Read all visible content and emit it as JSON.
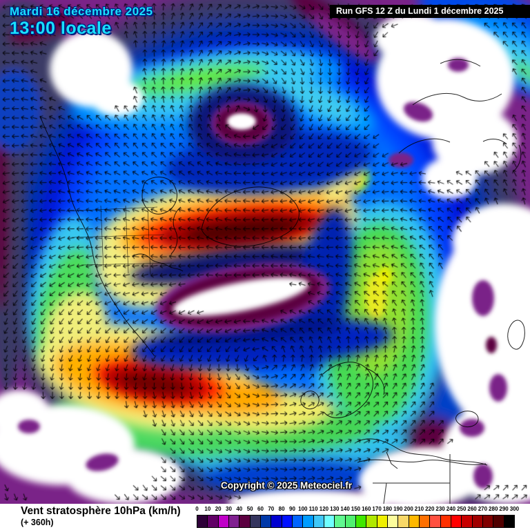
{
  "header": {
    "date_line": "Mardi 16 décembre 2025",
    "time_line": "13:00 locale",
    "run_info": "Run GFS 12 Z du Lundi 1 décembre 2025"
  },
  "map": {
    "copyright": "Copyright © 2025 Meteociel.fr",
    "kind": "polar stereographic stratospheric wind map with wind arrows"
  },
  "legend": {
    "title": "Vent stratosphère 10hPa (km/h)",
    "subtitle": "(+ 360h)",
    "ticks": [
      "0",
      "10",
      "20",
      "30",
      "40",
      "50",
      "60",
      "70",
      "80",
      "90",
      "100",
      "110",
      "120",
      "130",
      "140",
      "150",
      "160",
      "170",
      "180",
      "190",
      "200",
      "210",
      "220",
      "230",
      "240",
      "250",
      "260",
      "270",
      "280",
      "290",
      "300"
    ],
    "colors": [
      "#2e0038",
      "#610066",
      "#c000c8",
      "#802090",
      "#5c0040",
      "#35355e",
      "#0038a8",
      "#0000d0",
      "#0010ff",
      "#0064ff",
      "#009cff",
      "#40c8f8",
      "#70ffff",
      "#60f890",
      "#50f070",
      "#40e800",
      "#b0e800",
      "#f0f000",
      "#fcfc9c",
      "#f8d868",
      "#ffb800",
      "#ff7000",
      "#ff5040",
      "#ff3000",
      "#ff0000",
      "#c80000",
      "#a00000",
      "#800000",
      "#500000",
      "#000000"
    ]
  },
  "wind_field": {
    "cyclone_center": [
      352,
      445
    ],
    "anticyclone_center": [
      351,
      177
    ],
    "grid_step": 13.4,
    "arrow_color": "#000000"
  },
  "accent": {
    "header_text": "#19e0ff",
    "header_outline": "#001e7d",
    "run_box_bg": "#000000",
    "run_box_text": "#ffffff"
  }
}
